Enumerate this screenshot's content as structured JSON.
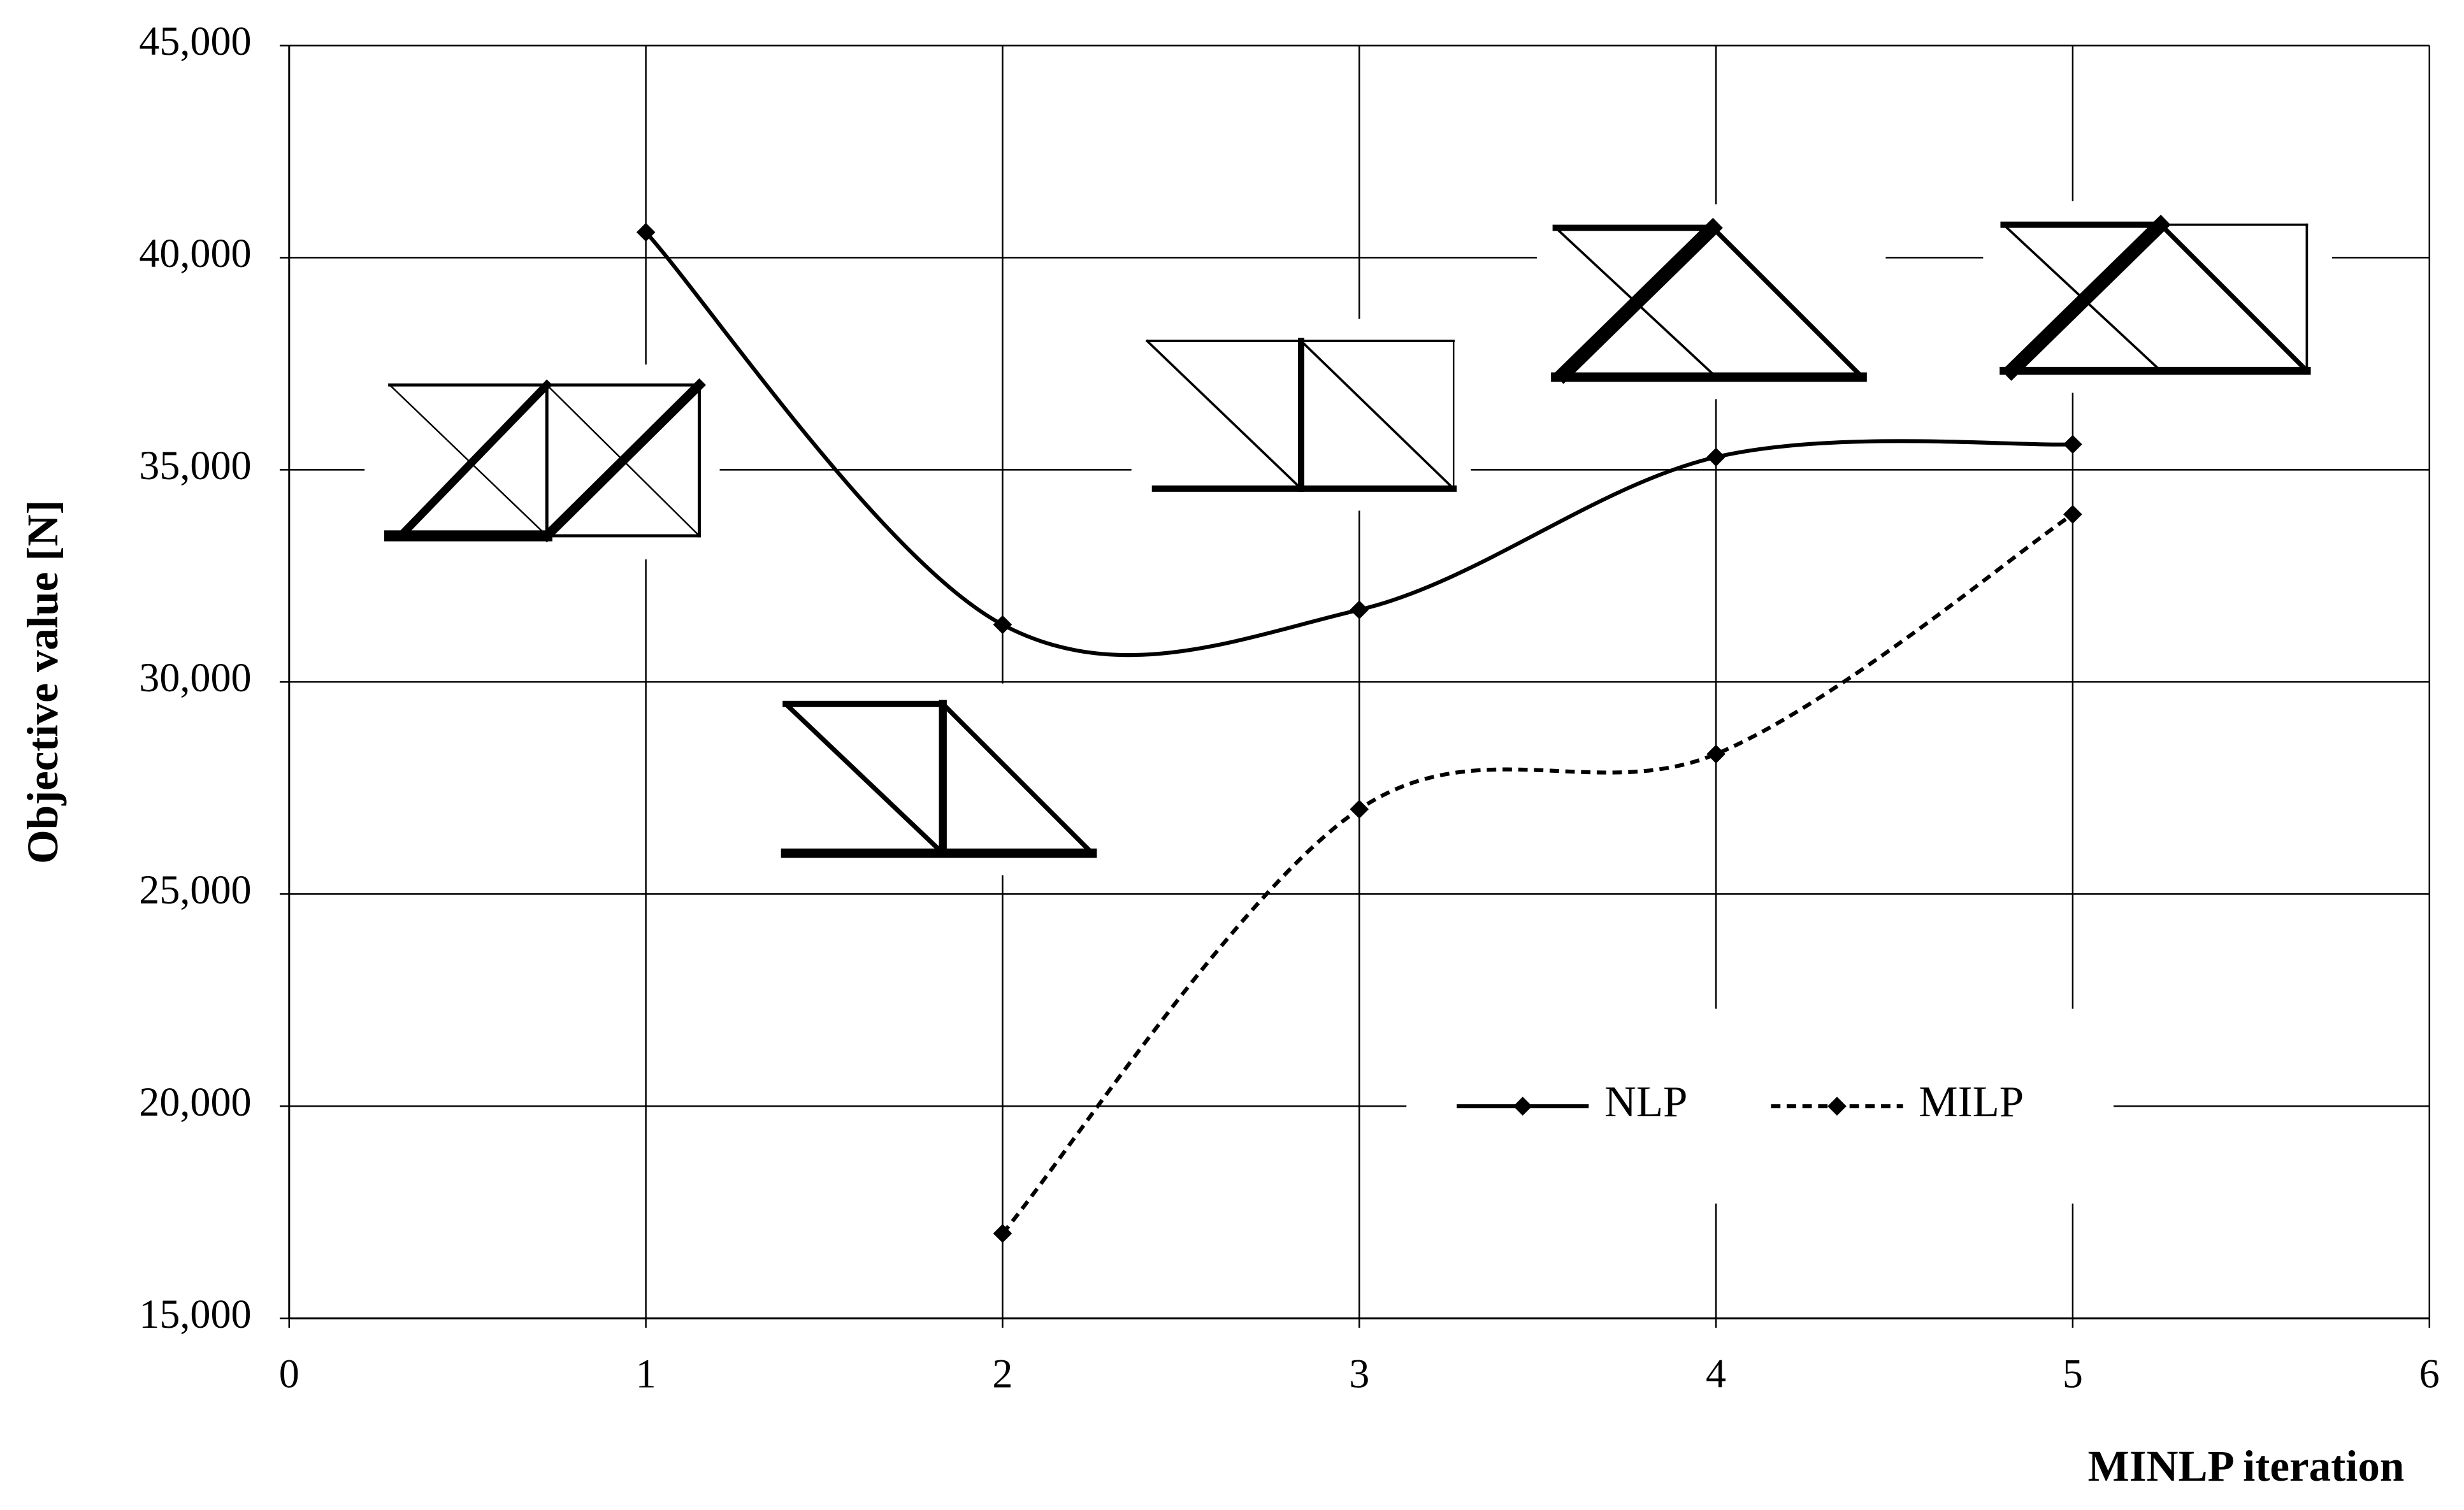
{
  "chart_data": {
    "type": "line",
    "x_label": "MINLP iteration",
    "y_label": "Objective value [N]",
    "xlim": [
      0,
      6
    ],
    "xticks": [
      0,
      1,
      2,
      3,
      4,
      5,
      6
    ],
    "ylim": [
      15000,
      45000
    ],
    "yticks": [
      {
        "value": 15000,
        "label": "15,000"
      },
      {
        "value": 20000,
        "label": "20,000"
      },
      {
        "value": 25000,
        "label": "25,000"
      },
      {
        "value": 30000,
        "label": "30,000"
      },
      {
        "value": 35000,
        "label": "35,000"
      },
      {
        "value": 40000,
        "label": "40,000"
      },
      {
        "value": 45000,
        "label": "45,000"
      }
    ],
    "grid": true,
    "smooth": true,
    "legend": "lower right",
    "series": [
      {
        "name": "NLP",
        "color": "#000000",
        "linestyle": "solid",
        "x": [
          1,
          2,
          3,
          4,
          5
        ],
        "values": [
          40600,
          31350,
          31700,
          35300,
          35600
        ]
      },
      {
        "name": "MILP",
        "color": "#000000",
        "linestyle": "dashed",
        "x": [
          2,
          3,
          4,
          5
        ],
        "values": [
          17000,
          27000,
          28300,
          33950
        ]
      }
    ]
  }
}
